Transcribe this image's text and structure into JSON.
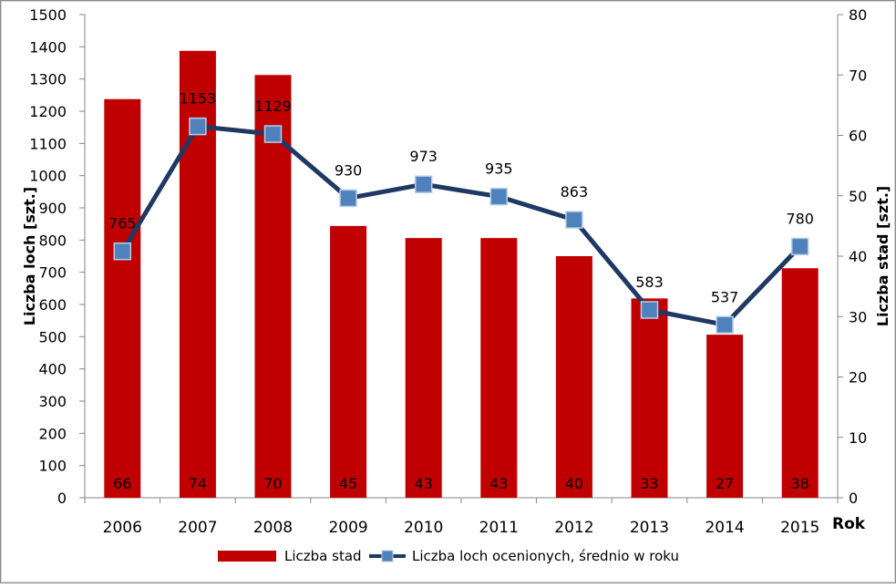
{
  "chart_data": {
    "type": "bar",
    "title": "",
    "xlabel": "Rok",
    "ylabel_left": "Liczba loch [szt.]",
    "ylabel_right": "Liczba stad [szt.]",
    "categories": [
      "2006",
      "2007",
      "2008",
      "2009",
      "2010",
      "2011",
      "2012",
      "2013",
      "2014",
      "2015"
    ],
    "ylim_left": [
      0,
      1500
    ],
    "ylim_right": [
      0,
      80
    ],
    "left_ticks": [
      "0",
      "100",
      "200",
      "300",
      "400",
      "500",
      "600",
      "700",
      "800",
      "900",
      "1000",
      "1100",
      "1200",
      "1300",
      "1400",
      "1500"
    ],
    "right_ticks": [
      "0",
      "10",
      "20",
      "30",
      "40",
      "50",
      "60",
      "70",
      "80"
    ],
    "series": [
      {
        "name": "Liczba stad",
        "kind": "bar",
        "axis": "right",
        "color": "#c00000",
        "values": [
          66,
          74,
          70,
          45,
          43,
          43,
          40,
          33,
          27,
          38
        ]
      },
      {
        "name": "Liczba loch ocenionych, średnio w roku",
        "kind": "line",
        "axis": "left",
        "color": "#1f3864",
        "marker_color": "#4f81bd",
        "values": [
          765,
          1153,
          1129,
          930,
          973,
          935,
          863,
          583,
          537,
          780
        ]
      }
    ],
    "legend_position": "bottom",
    "grid": false
  }
}
